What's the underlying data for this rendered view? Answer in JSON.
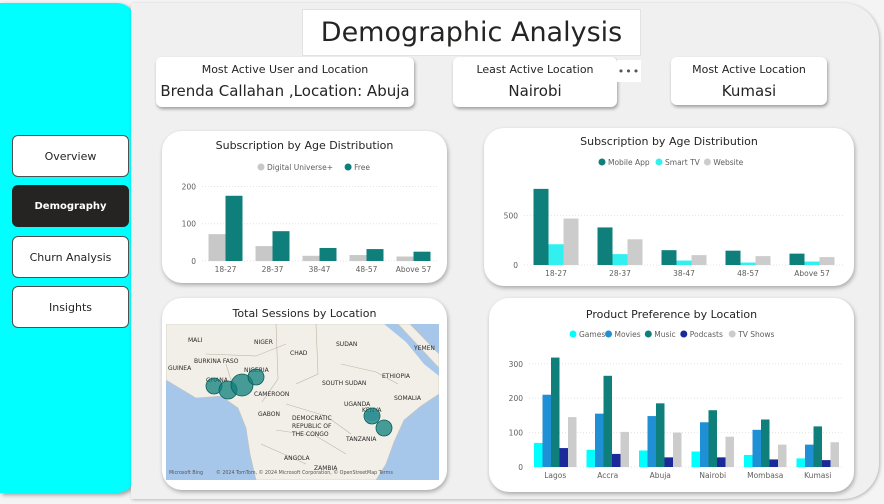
{
  "nav": {
    "items": [
      {
        "label": "Overview",
        "active": false
      },
      {
        "label": "Demography",
        "active": true
      },
      {
        "label": "Churn Analysis",
        "active": false
      },
      {
        "label": "Insights",
        "active": false
      }
    ]
  },
  "header": {
    "title": "Demographic Analysis",
    "more_label": "•••"
  },
  "kpis": {
    "most_active_user": {
      "label": "Most Active User and Location",
      "value": "Brenda Callahan ,Location: Abuja"
    },
    "least_active_location": {
      "label": "Least Active Location",
      "value": "Nairobi"
    },
    "most_active_location": {
      "label": "Most Active Location",
      "value": "Kumasi"
    }
  },
  "chart_data": [
    {
      "type": "bar",
      "title": "Subscription by Age Distribution",
      "categories": [
        "18-27",
        "28-37",
        "38-47",
        "48-57",
        "Above 57"
      ],
      "series": [
        {
          "name": "Digital Universe+",
          "values": [
            72,
            40,
            14,
            16,
            12
          ],
          "color": "#c8c8c8"
        },
        {
          "name": "Free",
          "values": [
            175,
            80,
            35,
            32,
            25
          ],
          "color": "#0e7f7b"
        }
      ],
      "yticks": [
        0,
        100,
        200
      ],
      "ylim": [
        0,
        220
      ]
    },
    {
      "type": "bar",
      "title": "Subscription by Age Distribution",
      "categories": [
        "18-27",
        "28-37",
        "38-47",
        "48-57",
        "Above 57"
      ],
      "series": [
        {
          "name": "Mobile App",
          "values": [
            770,
            380,
            150,
            145,
            115
          ],
          "color": "#0e7f7b"
        },
        {
          "name": "Smart TV",
          "values": [
            210,
            110,
            45,
            25,
            35
          ],
          "color": "#33f0f0"
        },
        {
          "name": "Website",
          "values": [
            470,
            260,
            100,
            90,
            80
          ],
          "color": "#cccccc"
        }
      ],
      "yticks": [
        0,
        500
      ],
      "ylim": [
        0,
        880
      ]
    },
    {
      "type": "map",
      "title": "Total Sessions by Location",
      "labels": [
        "MALI",
        "NIGER",
        "CHAD",
        "SUDAN",
        "YEMEN",
        "BURKINA FASO",
        "GUINEA",
        "NIGERIA",
        "GHANA",
        "CAMEROON",
        "SOUTH SUDAN",
        "ETHIOPIA",
        "SOMALIA",
        "GABON",
        "UGANDA",
        "KENYA",
        "DEMOCRATIC",
        "REPUBLIC OF",
        "THE CONGO",
        "TANZANIA",
        "ANGOLA",
        "ZAMBIA"
      ],
      "attribution": "© 2024 TomTom, © 2024 Microsoft Corporation, © OpenStreetMap  Terms",
      "brand": "Microsoft Bing"
    },
    {
      "type": "bar",
      "title": "Product Preference by Location",
      "categories": [
        "Lagos",
        "Accra",
        "Abuja",
        "Nairobi",
        "Mombasa",
        "Kumasi"
      ],
      "series": [
        {
          "name": "Games",
          "values": [
            70,
            50,
            48,
            45,
            35,
            25
          ],
          "color": "#00ffff"
        },
        {
          "name": "Movies",
          "values": [
            210,
            155,
            148,
            130,
            108,
            65
          ],
          "color": "#1f8fd6"
        },
        {
          "name": "Music",
          "values": [
            318,
            265,
            185,
            165,
            138,
            118
          ],
          "color": "#0e7f7b"
        },
        {
          "name": "Podcasts",
          "values": [
            55,
            38,
            28,
            28,
            22,
            20
          ],
          "color": "#1a2a9a"
        },
        {
          "name": "TV Shows",
          "values": [
            145,
            102,
            100,
            88,
            65,
            72
          ],
          "color": "#cccccc"
        }
      ],
      "yticks": [
        0,
        100,
        200,
        300
      ],
      "ylim": [
        0,
        340
      ]
    }
  ]
}
